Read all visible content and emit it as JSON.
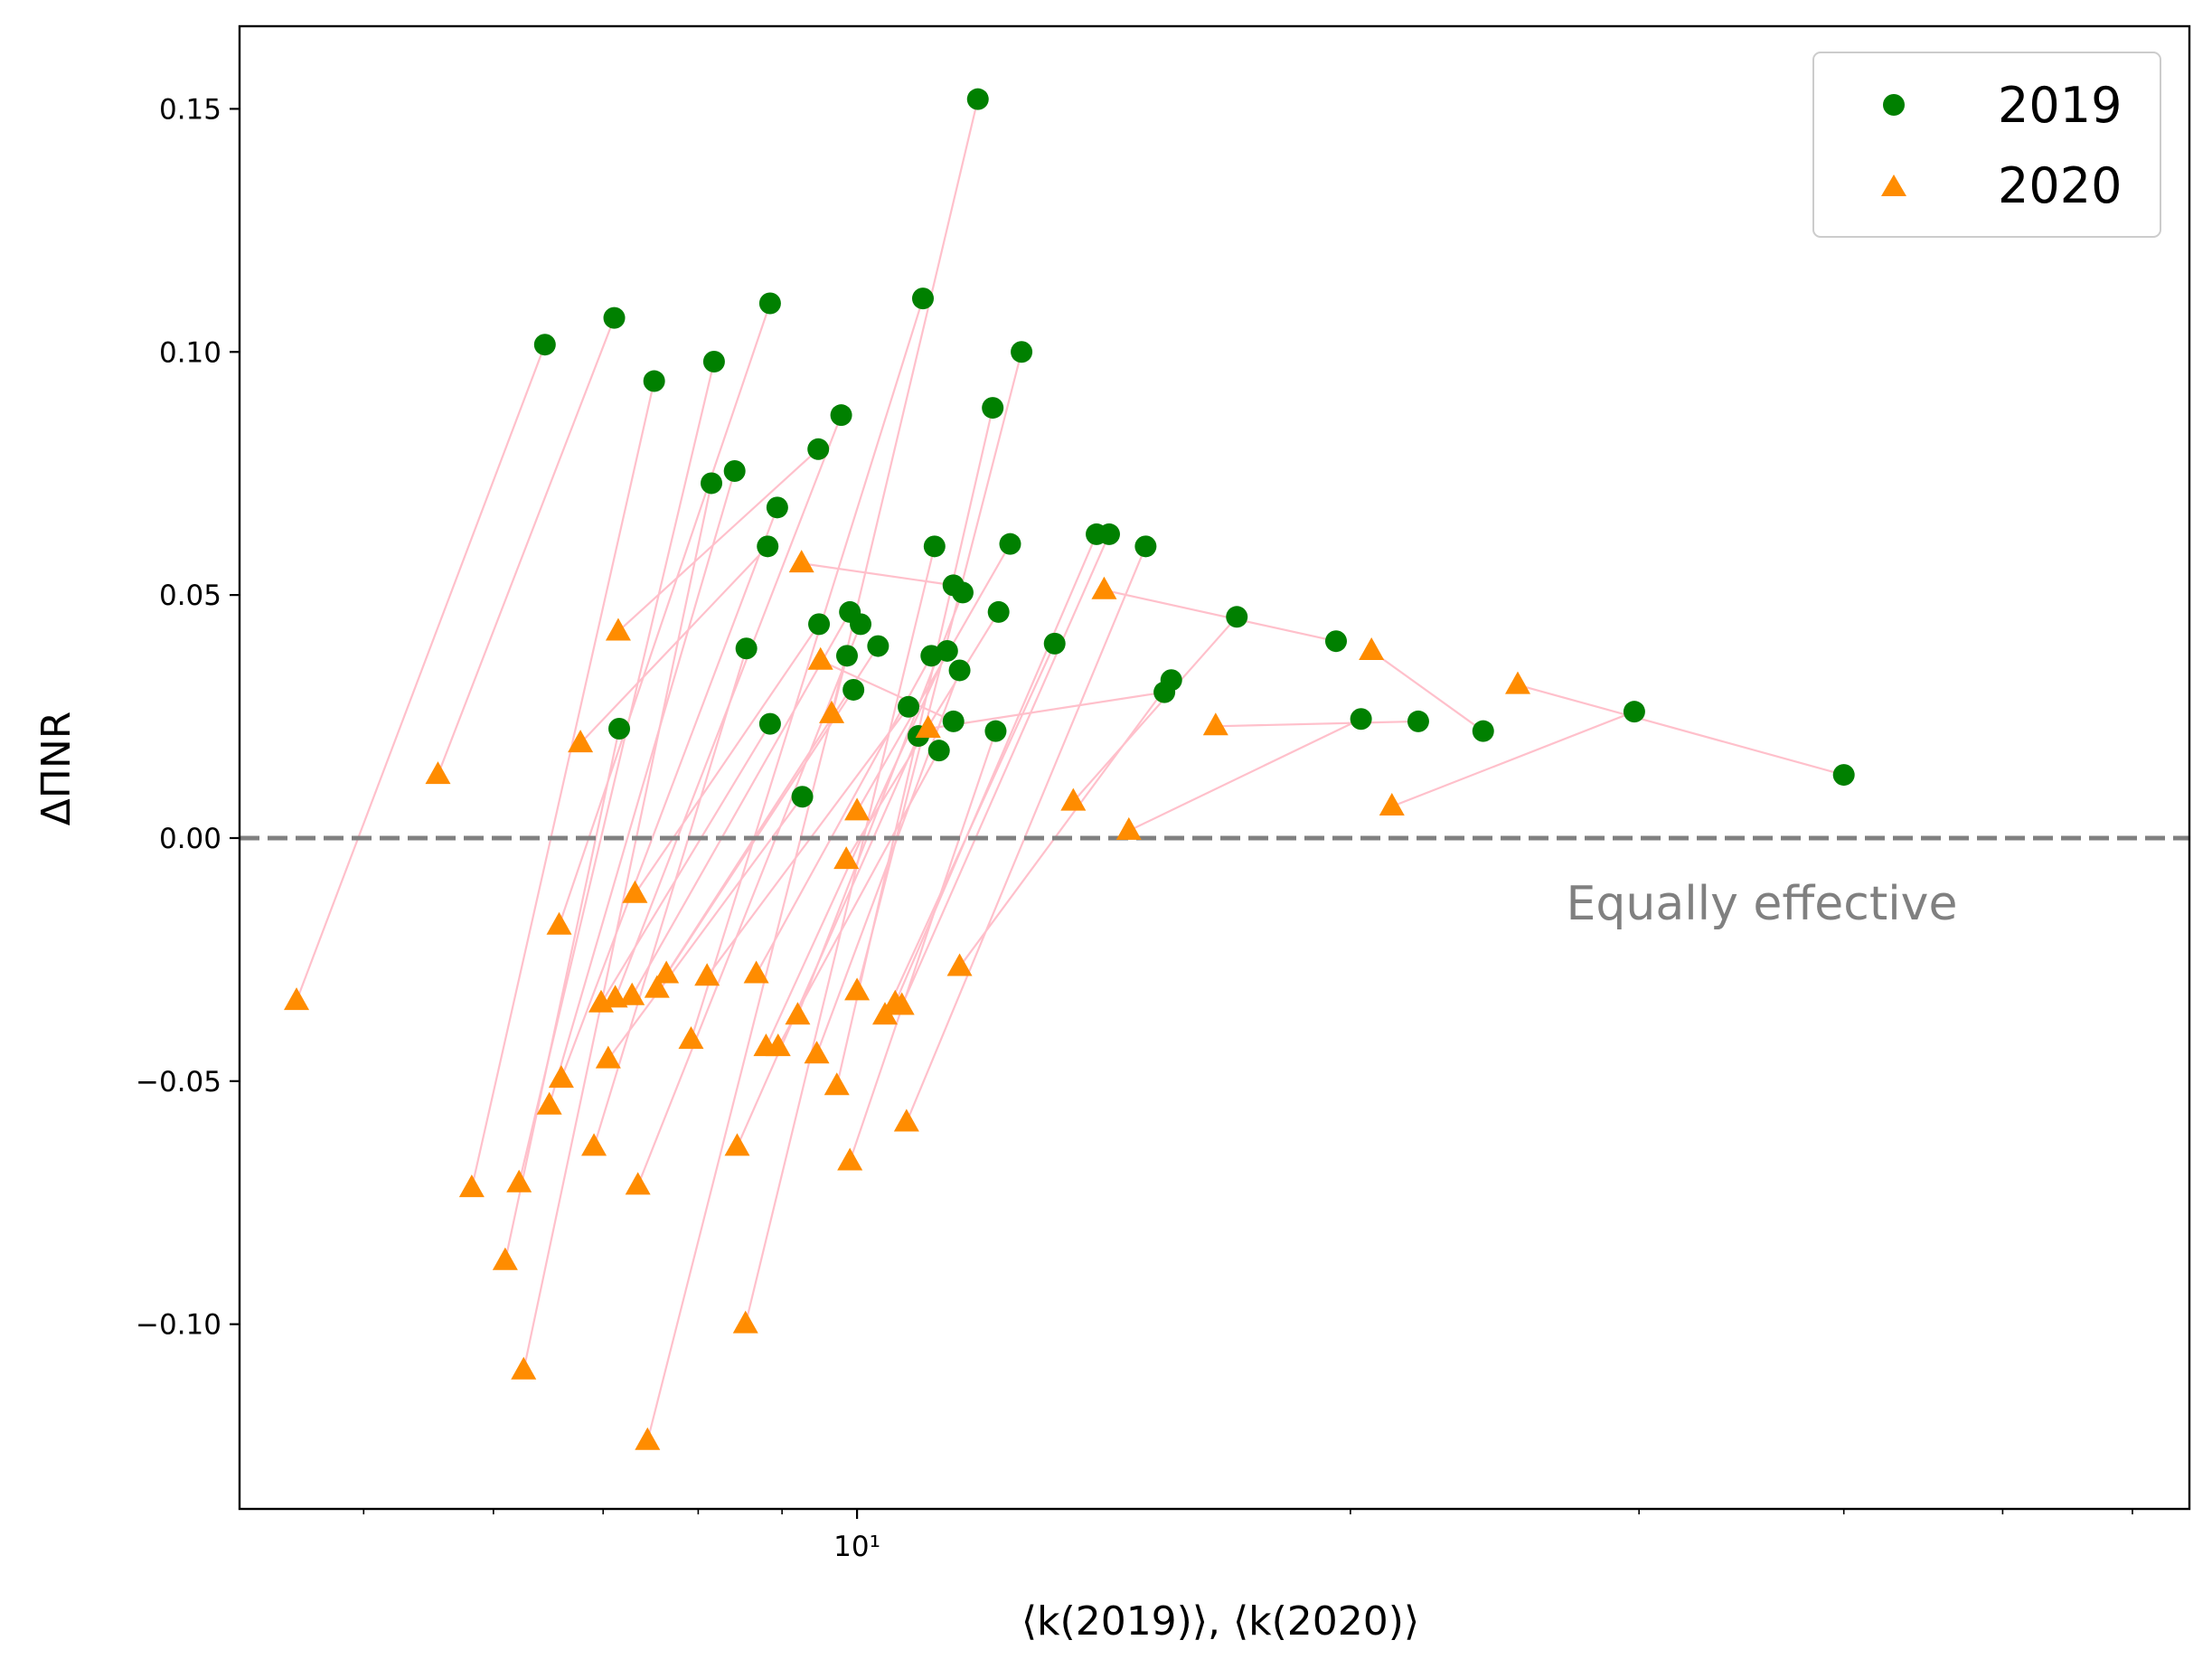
{
  "chart_data": {
    "type": "scatter",
    "xscale": "log",
    "xlim": [
      4.2,
      65
    ],
    "ylim": [
      -0.138,
      0.167
    ],
    "xlabel": "⟨k(2019)⟩, ⟨k(2020)⟩",
    "ylabel": "ΔΠNR",
    "yticks": [
      -0.1,
      -0.05,
      0.0,
      0.05,
      0.1,
      0.15
    ],
    "ytick_labels": [
      "−0.10",
      "−0.05",
      "0.00",
      "0.05",
      "0.10",
      "0.15"
    ],
    "xtick_major_label": "10¹",
    "reference_line": {
      "y": 0.0,
      "label": "Equally effective",
      "color": "#808080"
    },
    "legend_position": "top-right",
    "colors": {
      "2019": "#008000",
      "2020": "#ff8c00",
      "connector": "#ffc0cb"
    },
    "series": [
      {
        "name": "2019",
        "marker": "circle",
        "points": [
          {
            "x": 6.45,
            "y": 0.1015
          },
          {
            "x": 7.11,
            "y": 0.107
          },
          {
            "x": 7.52,
            "y": 0.094
          },
          {
            "x": 7.16,
            "y": 0.0225
          },
          {
            "x": 8.18,
            "y": 0.098
          },
          {
            "x": 8.15,
            "y": 0.073
          },
          {
            "x": 8.42,
            "y": 0.0755
          },
          {
            "x": 8.85,
            "y": 0.11
          },
          {
            "x": 8.94,
            "y": 0.068
          },
          {
            "x": 8.82,
            "y": 0.06
          },
          {
            "x": 8.56,
            "y": 0.039
          },
          {
            "x": 8.85,
            "y": 0.0235
          },
          {
            "x": 9.26,
            "y": 0.0085
          },
          {
            "x": 9.47,
            "y": 0.08
          },
          {
            "x": 9.78,
            "y": 0.087
          },
          {
            "x": 9.48,
            "y": 0.044
          },
          {
            "x": 9.9,
            "y": 0.0465
          },
          {
            "x": 10.05,
            "y": 0.044
          },
          {
            "x": 9.86,
            "y": 0.0375
          },
          {
            "x": 9.95,
            "y": 0.0305
          },
          {
            "x": 10.3,
            "y": 0.0395
          },
          {
            "x": 10.97,
            "y": 0.111
          },
          {
            "x": 10.75,
            "y": 0.027
          },
          {
            "x": 10.9,
            "y": 0.021
          },
          {
            "x": 11.15,
            "y": 0.06
          },
          {
            "x": 11.1,
            "y": 0.0375
          },
          {
            "x": 11.35,
            "y": 0.0385
          },
          {
            "x": 11.22,
            "y": 0.018
          },
          {
            "x": 11.45,
            "y": 0.052
          },
          {
            "x": 11.6,
            "y": 0.0505
          },
          {
            "x": 11.55,
            "y": 0.0345
          },
          {
            "x": 11.45,
            "y": 0.024
          },
          {
            "x": 11.85,
            "y": 0.152
          },
          {
            "x": 12.1,
            "y": 0.0885
          },
          {
            "x": 12.2,
            "y": 0.0465
          },
          {
            "x": 12.15,
            "y": 0.022
          },
          {
            "x": 12.4,
            "y": 0.0605
          },
          {
            "x": 12.6,
            "y": 0.1
          },
          {
            "x": 13.2,
            "y": 0.04
          },
          {
            "x": 14.0,
            "y": 0.0625
          },
          {
            "x": 14.25,
            "y": 0.0625
          },
          {
            "x": 15.0,
            "y": 0.06
          },
          {
            "x": 15.4,
            "y": 0.03
          },
          {
            "x": 15.55,
            "y": 0.0325
          },
          {
            "x": 17.05,
            "y": 0.0455
          },
          {
            "x": 19.6,
            "y": 0.0405
          },
          {
            "x": 20.3,
            "y": 0.0245
          },
          {
            "x": 22.0,
            "y": 0.024
          },
          {
            "x": 24.1,
            "y": 0.022
          },
          {
            "x": 29.8,
            "y": 0.026
          },
          {
            "x": 40.0,
            "y": 0.013
          }
        ]
      },
      {
        "name": "2020",
        "marker": "triangle",
        "points": [
          {
            "x": 4.55,
            "y": -0.0335
          },
          {
            "x": 5.55,
            "y": 0.013
          },
          {
            "x": 5.82,
            "y": -0.072
          },
          {
            "x": 6.1,
            "y": -0.087
          },
          {
            "x": 6.22,
            "y": -0.071
          },
          {
            "x": 6.26,
            "y": -0.1095
          },
          {
            "x": 6.49,
            "y": -0.055
          },
          {
            "x": 6.58,
            "y": -0.018
          },
          {
            "x": 6.6,
            "y": -0.0495
          },
          {
            "x": 6.78,
            "y": 0.0195
          },
          {
            "x": 6.91,
            "y": -0.0635
          },
          {
            "x": 6.98,
            "y": -0.034
          },
          {
            "x": 7.05,
            "y": -0.0455
          },
          {
            "x": 7.15,
            "y": 0.0425
          },
          {
            "x": 7.12,
            "y": -0.033
          },
          {
            "x": 7.32,
            "y": -0.0115
          },
          {
            "x": 7.29,
            "y": -0.0325
          },
          {
            "x": 7.35,
            "y": -0.0715
          },
          {
            "x": 7.45,
            "y": -0.124
          },
          {
            "x": 7.55,
            "y": -0.031
          },
          {
            "x": 7.65,
            "y": -0.028
          },
          {
            "x": 7.92,
            "y": -0.0415
          },
          {
            "x": 8.1,
            "y": -0.0285
          },
          {
            "x": 8.45,
            "y": -0.0635
          },
          {
            "x": 8.55,
            "y": -0.1
          },
          {
            "x": 8.68,
            "y": -0.028
          },
          {
            "x": 8.8,
            "y": -0.043
          },
          {
            "x": 8.95,
            "y": -0.043
          },
          {
            "x": 9.25,
            "y": 0.0565
          },
          {
            "x": 9.2,
            "y": -0.0365
          },
          {
            "x": 9.45,
            "y": -0.0445
          },
          {
            "x": 9.5,
            "y": 0.0365
          },
          {
            "x": 9.65,
            "y": 0.0255
          },
          {
            "x": 9.72,
            "y": -0.051
          },
          {
            "x": 9.85,
            "y": -0.0045
          },
          {
            "x": 9.9,
            "y": -0.0665
          },
          {
            "x": 10.0,
            "y": 0.0055
          },
          {
            "x": 10.0,
            "y": -0.0315
          },
          {
            "x": 10.4,
            "y": -0.0365
          },
          {
            "x": 10.55,
            "y": -0.034
          },
          {
            "x": 10.65,
            "y": -0.0345
          },
          {
            "x": 10.72,
            "y": -0.0585
          },
          {
            "x": 11.05,
            "y": 0.0225
          },
          {
            "x": 11.55,
            "y": -0.0265
          },
          {
            "x": 13.55,
            "y": 0.0075
          },
          {
            "x": 14.15,
            "y": 0.051
          },
          {
            "x": 14.65,
            "y": 0.0015
          },
          {
            "x": 16.55,
            "y": 0.023
          },
          {
            "x": 20.6,
            "y": 0.0385
          },
          {
            "x": 21.2,
            "y": 0.0065
          },
          {
            "x": 25.3,
            "y": 0.0315
          }
        ]
      }
    ],
    "pairs": [
      [
        0,
        0
      ],
      [
        1,
        1
      ],
      [
        2,
        2
      ],
      [
        3,
        3
      ],
      [
        4,
        4
      ],
      [
        5,
        5
      ],
      [
        6,
        6
      ],
      [
        7,
        7
      ],
      [
        8,
        8
      ],
      [
        9,
        9
      ],
      [
        10,
        10
      ],
      [
        11,
        11
      ],
      [
        12,
        12
      ],
      [
        13,
        13
      ],
      [
        14,
        14
      ],
      [
        15,
        15
      ],
      [
        16,
        16
      ],
      [
        17,
        17
      ],
      [
        18,
        18
      ],
      [
        19,
        19
      ],
      [
        20,
        20
      ],
      [
        21,
        21
      ],
      [
        22,
        22
      ],
      [
        23,
        23
      ],
      [
        24,
        24
      ],
      [
        25,
        25
      ],
      [
        26,
        26
      ],
      [
        27,
        27
      ],
      [
        28,
        28
      ],
      [
        29,
        29
      ],
      [
        30,
        30
      ],
      [
        31,
        31
      ],
      [
        32,
        32
      ],
      [
        33,
        33
      ],
      [
        34,
        34
      ],
      [
        35,
        35
      ],
      [
        36,
        36
      ],
      [
        37,
        37
      ],
      [
        38,
        38
      ],
      [
        39,
        39
      ],
      [
        40,
        40
      ],
      [
        41,
        41
      ],
      [
        42,
        42
      ],
      [
        43,
        43
      ],
      [
        44,
        44
      ],
      [
        45,
        45
      ],
      [
        46,
        46
      ],
      [
        47,
        47
      ],
      [
        48,
        48
      ],
      [
        49,
        49
      ],
      [
        50,
        50
      ]
    ]
  }
}
